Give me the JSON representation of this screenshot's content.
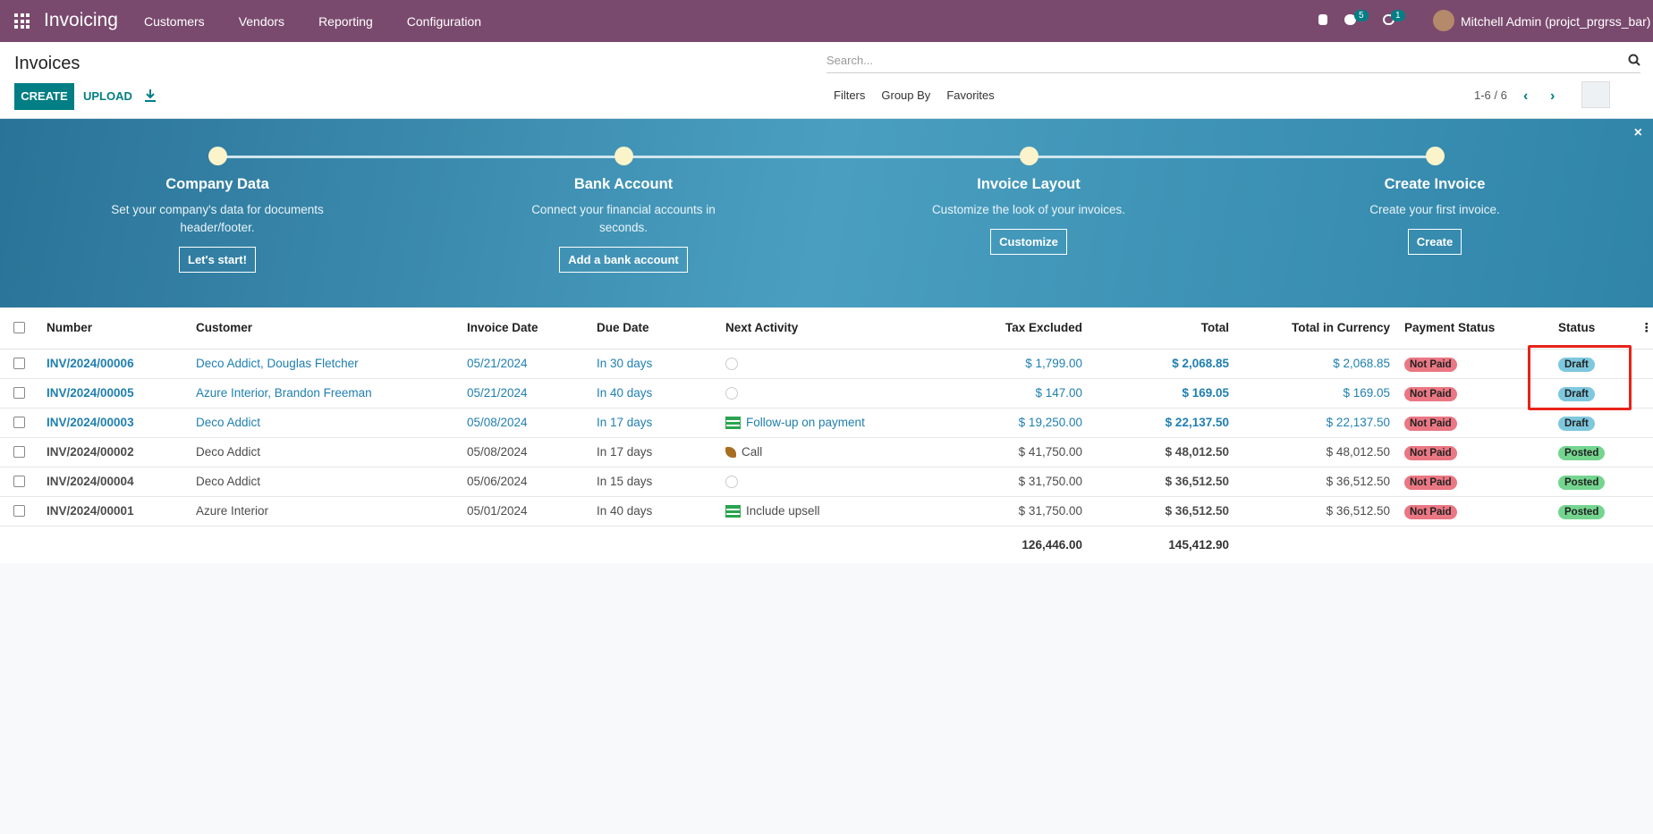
{
  "navbar": {
    "app": "Invoicing",
    "menu": [
      "Customers",
      "Vendors",
      "Reporting",
      "Configuration"
    ],
    "messages_badge": 5,
    "activities_badge": 1,
    "user": "Mitchell Admin (projct_prgrss_bar)"
  },
  "control_panel": {
    "title": "Invoices",
    "buttons": [
      "CREATE",
      "UPLOAD"
    ],
    "search_placeholder": "Search...",
    "filters": [
      "Filters",
      "Group By",
      "Favorites"
    ],
    "pager": "1-6 / 6"
  },
  "onboarding": {
    "steps": [
      {
        "title": "Company Data",
        "description": "Set your company's data for documents header/footer.",
        "button": "Let's start!"
      },
      {
        "title": "Bank Account",
        "description": "Connect your financial accounts in seconds.",
        "button": "Add a bank account"
      },
      {
        "title": "Invoice Layout",
        "description": "Customize the look of your invoices.",
        "button": "Customize"
      },
      {
        "title": "Create Invoice",
        "description": "Create your first invoice.",
        "button": "Create"
      }
    ]
  },
  "table": {
    "columns": [
      "Number",
      "Customer",
      "Invoice Date",
      "Due Date",
      "Next Activity",
      "Tax Excluded",
      "Total",
      "Total in Currency",
      "Payment Status",
      "Status"
    ],
    "rows": [
      [
        "INV/2024/00006",
        "Deco Addict, Douglas Fletcher",
        "05/21/2024",
        "In 30 days",
        null,
        "$ 1,799.00",
        "$ 2,068.85",
        "$ 2,068.85",
        "Not Paid",
        "Draft"
      ],
      [
        "INV/2024/00005",
        "Azure Interior, Brandon Freeman",
        "05/21/2024",
        "In 40 days",
        null,
        "$ 147.00",
        "$ 169.05",
        "$ 169.05",
        "Not Paid",
        "Draft"
      ],
      [
        "INV/2024/00003",
        "Deco Addict",
        "05/08/2024",
        "In 17 days",
        "Follow-up on payment",
        "$ 19,250.00",
        "$ 22,137.50",
        "$ 22,137.50",
        "Not Paid",
        "Draft"
      ],
      [
        "INV/2024/00002",
        "Deco Addict",
        "05/08/2024",
        "In 17 days",
        "Call",
        "$ 41,750.00",
        "$ 48,012.50",
        "$ 48,012.50",
        "Not Paid",
        "Posted"
      ],
      [
        "INV/2024/00004",
        "Deco Addict",
        "05/06/2024",
        "In 15 days",
        null,
        "$ 31,750.00",
        "$ 36,512.50",
        "$ 36,512.50",
        "Not Paid",
        "Posted"
      ],
      [
        "INV/2024/00001",
        "Azure Interior",
        "05/01/2024",
        "In 40 days",
        "Include upsell",
        "$ 31,750.00",
        "$ 36,512.50",
        "$ 36,512.50",
        "Not Paid",
        "Posted"
      ]
    ],
    "totals": {
      "tax_excluded": "126,446.00",
      "total": "145,412.90"
    }
  }
}
